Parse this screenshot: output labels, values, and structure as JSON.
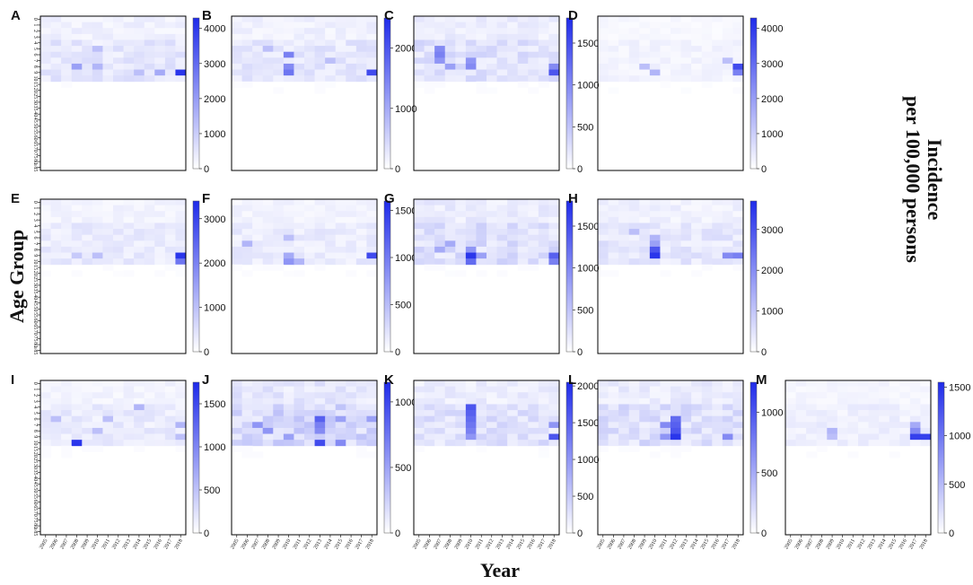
{
  "figure": {
    "xlabel": "Year",
    "ylabel": "Age Group",
    "colorbar_title_line1": "Incidence",
    "colorbar_title_line2": "per 100,000 persons"
  },
  "colors": {
    "low": "#ffffff",
    "high": "#1f2bea",
    "frame": "#000000"
  },
  "chart_data": {
    "type": "heatmap",
    "years": [
      "2005",
      "2006",
      "2007",
      "2008",
      "2009",
      "2010",
      "2011",
      "2012",
      "2013",
      "2014",
      "2015",
      "2016",
      "2017",
      "2018"
    ],
    "age_groups": [
      "0",
      "1",
      "2",
      "3",
      "4",
      "5",
      "6",
      "7",
      "8",
      "9",
      "10",
      "15",
      "20",
      "25",
      "30",
      "35",
      "40",
      "45",
      "50",
      "55",
      "60",
      "65",
      "70",
      "75",
      "80",
      "≥85"
    ],
    "panels": [
      {
        "label": "A",
        "max": 4300,
        "ticks": [
          0,
          1000,
          2000,
          3000,
          4000
        ],
        "hot": [
          [
            8,
            3,
            0.45
          ],
          [
            8,
            5,
            0.35
          ],
          [
            9,
            13,
            0.95
          ],
          [
            9,
            11,
            0.4
          ],
          [
            9,
            9,
            0.3
          ],
          [
            5,
            5,
            0.3
          ]
        ],
        "base": 0.12
      },
      {
        "label": "B",
        "max": 2500,
        "ticks": [
          0,
          1000,
          2000
        ],
        "hot": [
          [
            6,
            5,
            0.6
          ],
          [
            8,
            5,
            0.55
          ],
          [
            9,
            5,
            0.65
          ],
          [
            9,
            13,
            0.85
          ],
          [
            5,
            3,
            0.3
          ],
          [
            7,
            9,
            0.3
          ]
        ],
        "base": 0.12
      },
      {
        "label": "C",
        "max": 1800,
        "ticks": [
          0,
          500,
          1000,
          1500
        ],
        "hot": [
          [
            5,
            2,
            0.55
          ],
          [
            6,
            2,
            0.6
          ],
          [
            7,
            2,
            0.5
          ],
          [
            8,
            5,
            0.55
          ],
          [
            8,
            3,
            0.45
          ],
          [
            9,
            13,
            0.8
          ],
          [
            8,
            13,
            0.55
          ],
          [
            7,
            5,
            0.5
          ]
        ],
        "base": 0.15
      },
      {
        "label": "D",
        "max": 4300,
        "ticks": [
          0,
          1000,
          2000,
          3000,
          4000
        ],
        "hot": [
          [
            8,
            13,
            0.85
          ],
          [
            9,
            13,
            0.6
          ],
          [
            8,
            4,
            0.3
          ],
          [
            9,
            5,
            0.35
          ],
          [
            7,
            12,
            0.3
          ]
        ],
        "base": 0.06
      },
      {
        "label": "E",
        "max": 3400,
        "ticks": [
          0,
          1000,
          2000,
          3000
        ],
        "hot": [
          [
            9,
            13,
            0.95
          ],
          [
            10,
            13,
            0.65
          ],
          [
            9,
            5,
            0.3
          ],
          [
            9,
            3,
            0.25
          ]
        ],
        "base": 0.1
      },
      {
        "label": "F",
        "max": 1600,
        "ticks": [
          0,
          500,
          1000,
          1500
        ],
        "hot": [
          [
            9,
            13,
            0.85
          ],
          [
            10,
            5,
            0.5
          ],
          [
            9,
            5,
            0.4
          ],
          [
            10,
            6,
            0.35
          ],
          [
            7,
            1,
            0.35
          ],
          [
            6,
            5,
            0.3
          ]
        ],
        "base": 0.1
      },
      {
        "label": "G",
        "max": 1800,
        "ticks": [
          0,
          500,
          1000,
          1500
        ],
        "hot": [
          [
            9,
            5,
            0.95
          ],
          [
            10,
            5,
            0.7
          ],
          [
            8,
            5,
            0.5
          ],
          [
            9,
            13,
            0.75
          ],
          [
            10,
            13,
            0.6
          ],
          [
            7,
            3,
            0.4
          ],
          [
            8,
            2,
            0.4
          ],
          [
            9,
            6,
            0.45
          ]
        ],
        "base": 0.16
      },
      {
        "label": "H",
        "max": 3700,
        "ticks": [
          0,
          1000,
          2000,
          3000
        ],
        "hot": [
          [
            8,
            5,
            0.8
          ],
          [
            9,
            5,
            0.95
          ],
          [
            7,
            5,
            0.45
          ],
          [
            9,
            12,
            0.55
          ],
          [
            9,
            13,
            0.6
          ],
          [
            6,
            5,
            0.35
          ],
          [
            5,
            3,
            0.3
          ]
        ],
        "base": 0.12
      },
      {
        "label": "I",
        "max": 1750,
        "ticks": [
          0,
          500,
          1000,
          1500
        ],
        "hot": [
          [
            10,
            3,
            0.95
          ],
          [
            6,
            1,
            0.3
          ],
          [
            4,
            9,
            0.35
          ],
          [
            7,
            13,
            0.35
          ],
          [
            9,
            13,
            0.3
          ],
          [
            6,
            6,
            0.3
          ],
          [
            8,
            5,
            0.3
          ]
        ],
        "base": 0.1
      },
      {
        "label": "J",
        "max": 1150,
        "ticks": [
          0,
          500,
          1000
        ],
        "hot": [
          [
            6,
            8,
            0.75
          ],
          [
            10,
            8,
            0.85
          ],
          [
            7,
            8,
            0.6
          ],
          [
            8,
            8,
            0.55
          ],
          [
            10,
            10,
            0.55
          ],
          [
            7,
            2,
            0.5
          ],
          [
            8,
            3,
            0.5
          ],
          [
            9,
            5,
            0.45
          ],
          [
            6,
            10,
            0.45
          ],
          [
            6,
            13,
            0.45
          ]
        ],
        "base": 0.2
      },
      {
        "label": "K",
        "max": 2050,
        "ticks": [
          0,
          500,
          1000,
          1500,
          2000
        ],
        "hot": [
          [
            4,
            5,
            0.8
          ],
          [
            5,
            5,
            0.75
          ],
          [
            6,
            5,
            0.7
          ],
          [
            7,
            5,
            0.65
          ],
          [
            8,
            5,
            0.6
          ],
          [
            9,
            5,
            0.5
          ],
          [
            9,
            13,
            0.8
          ],
          [
            7,
            13,
            0.5
          ]
        ],
        "base": 0.15
      },
      {
        "label": "L",
        "max": 1250,
        "ticks": [
          0,
          500,
          1000
        ],
        "hot": [
          [
            9,
            7,
            0.95
          ],
          [
            8,
            7,
            0.8
          ],
          [
            7,
            7,
            0.75
          ],
          [
            6,
            7,
            0.7
          ],
          [
            7,
            6,
            0.55
          ],
          [
            9,
            12,
            0.55
          ],
          [
            9,
            6,
            0.5
          ]
        ],
        "base": 0.16
      },
      {
        "label": "M",
        "max": 1550,
        "ticks": [
          0,
          500,
          1000,
          1500
        ],
        "hot": [
          [
            9,
            12,
            0.9
          ],
          [
            9,
            13,
            0.9
          ],
          [
            8,
            12,
            0.55
          ],
          [
            7,
            12,
            0.4
          ],
          [
            8,
            4,
            0.35
          ],
          [
            9,
            4,
            0.3
          ]
        ],
        "base": 0.08
      }
    ]
  }
}
